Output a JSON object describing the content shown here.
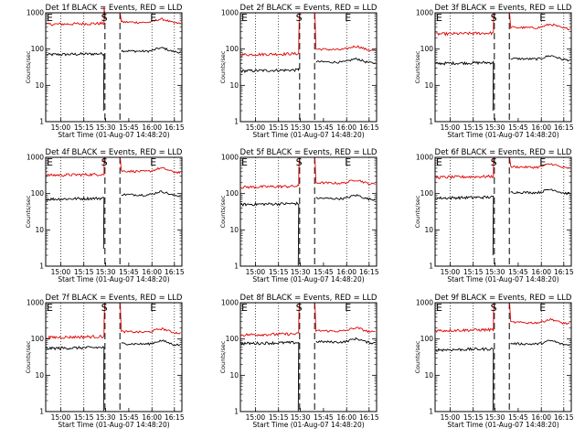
{
  "colors": {
    "background": "#ffffff",
    "events": "#000000",
    "lld": "#e00000",
    "frame": "#000000"
  },
  "chart_data": [
    {
      "type": "line",
      "title": "Det 1f BLACK = Events, RED = LLD",
      "xlabel": "Start Time (01-Aug-07 14:48:20)",
      "ylabel": "Counts/sec",
      "x_ticks": [
        "15:00",
        "15:15",
        "15:30",
        "15:45",
        "16:00",
        "16:15"
      ],
      "y_ticks": [
        "1",
        "10",
        "100",
        "1000"
      ],
      "y_scale": "log",
      "ylim": [
        1,
        1000
      ],
      "marker_labels": [
        "E",
        "S",
        "E"
      ],
      "series": [
        {
          "color": "#000000",
          "pre": 70,
          "post": 90,
          "drop_to": 2
        },
        {
          "color": "#e00000",
          "pre": 480,
          "post": 560
        }
      ]
    },
    {
      "type": "line",
      "title": "Det 2f BLACK = Events, RED = LLD",
      "xlabel": "Start Time (01-Aug-07 14:48:20)",
      "ylabel": "Counts/sec",
      "x_ticks": [
        "15:00",
        "15:15",
        "15:30",
        "15:45",
        "16:00",
        "16:15"
      ],
      "y_ticks": [
        "1",
        "10",
        "100",
        "1000"
      ],
      "y_scale": "log",
      "ylim": [
        1,
        1000
      ],
      "marker_labels": [
        "E",
        "S",
        "E"
      ],
      "series": [
        {
          "color": "#000000",
          "pre": 25,
          "post": 45,
          "drop_to": 30
        },
        {
          "color": "#e00000",
          "pre": 70,
          "post": 100
        }
      ]
    },
    {
      "type": "line",
      "title": "Det 3f BLACK = Events, RED = LLD",
      "xlabel": "Start Time (01-Aug-07 14:48:20)",
      "ylabel": "Counts/sec",
      "x_ticks": [
        "15:00",
        "15:15",
        "15:30",
        "15:45",
        "16:00",
        "16:15"
      ],
      "y_ticks": [
        "1",
        "10",
        "100",
        "1000"
      ],
      "y_scale": "log",
      "ylim": [
        1,
        1000
      ],
      "marker_labels": [
        "E",
        "S",
        "E"
      ],
      "series": [
        {
          "color": "#000000",
          "pre": 40,
          "post": 55,
          "drop_to": 2
        },
        {
          "color": "#e00000",
          "pre": 260,
          "post": 400
        }
      ]
    },
    {
      "type": "line",
      "title": "Det 4f BLACK = Events, RED = LLD",
      "xlabel": "Start Time (01-Aug-07 14:48:20)",
      "ylabel": "Counts/sec",
      "x_ticks": [
        "15:00",
        "15:15",
        "15:30",
        "15:45",
        "16:00",
        "16:15"
      ],
      "y_ticks": [
        "1",
        "10",
        "100",
        "1000"
      ],
      "y_scale": "log",
      "ylim": [
        1,
        1000
      ],
      "marker_labels": [
        "E",
        "S",
        "E"
      ],
      "series": [
        {
          "color": "#000000",
          "pre": 70,
          "post": 95,
          "drop_to": 3
        },
        {
          "color": "#e00000",
          "pre": 320,
          "post": 420
        }
      ]
    },
    {
      "type": "line",
      "title": "Det 5f BLACK = Events, RED = LLD",
      "xlabel": "Start Time (01-Aug-07 14:48:20)",
      "ylabel": "Counts/sec",
      "x_ticks": [
        "15:00",
        "15:15",
        "15:30",
        "15:45",
        "16:00",
        "16:15"
      ],
      "y_ticks": [
        "1",
        "10",
        "100",
        "1000"
      ],
      "y_scale": "log",
      "ylim": [
        1,
        1000
      ],
      "marker_labels": [
        "E",
        "S",
        "E"
      ],
      "series": [
        {
          "color": "#000000",
          "pre": 50,
          "post": 75,
          "drop_to": 1
        },
        {
          "color": "#e00000",
          "pre": 150,
          "post": 200
        }
      ]
    },
    {
      "type": "line",
      "title": "Det 6f BLACK = Events, RED = LLD",
      "xlabel": "Start Time (01-Aug-07 14:48:20)",
      "ylabel": "Counts/sec",
      "x_ticks": [
        "15:00",
        "15:15",
        "15:30",
        "15:45",
        "16:00",
        "16:15"
      ],
      "y_ticks": [
        "1",
        "10",
        "100",
        "1000"
      ],
      "y_scale": "log",
      "ylim": [
        1,
        1000
      ],
      "marker_labels": [
        "E",
        "S",
        "E"
      ],
      "series": [
        {
          "color": "#000000",
          "pre": 75,
          "post": 110,
          "drop_to": 2
        },
        {
          "color": "#e00000",
          "pre": 280,
          "post": 550
        }
      ]
    },
    {
      "type": "line",
      "title": "Det 7f BLACK = Events, RED = LLD",
      "xlabel": "Start Time (01-Aug-07 14:48:20)",
      "ylabel": "Counts/sec",
      "x_ticks": [
        "15:00",
        "15:15",
        "15:30",
        "15:45",
        "16:00",
        "16:15"
      ],
      "y_ticks": [
        "1",
        "10",
        "100",
        "1000"
      ],
      "y_scale": "log",
      "ylim": [
        1,
        1000
      ],
      "marker_labels": [
        "E",
        "S",
        "E"
      ],
      "series": [
        {
          "color": "#000000",
          "pre": 55,
          "post": 75,
          "drop_to": 1
        },
        {
          "color": "#e00000",
          "pre": 110,
          "post": 160
        }
      ]
    },
    {
      "type": "line",
      "title": "Det 8f BLACK = Events, RED = LLD",
      "xlabel": "Start Time (01-Aug-07 14:48:20)",
      "ylabel": "Counts/sec",
      "x_ticks": [
        "15:00",
        "15:15",
        "15:30",
        "15:45",
        "16:00",
        "16:15"
      ],
      "y_ticks": [
        "1",
        "10",
        "100",
        "1000"
      ],
      "y_scale": "log",
      "ylim": [
        1,
        1000
      ],
      "marker_labels": [
        "E",
        "S",
        "E"
      ],
      "series": [
        {
          "color": "#000000",
          "pre": 75,
          "post": 85,
          "drop_to": 1
        },
        {
          "color": "#e00000",
          "pre": 130,
          "post": 170
        }
      ]
    },
    {
      "type": "line",
      "title": "Det 9f BLACK = Events, RED = LLD",
      "xlabel": "Start Time (01-Aug-07 14:48:20)",
      "ylabel": "Counts/sec",
      "x_ticks": [
        "15:00",
        "15:15",
        "15:30",
        "15:45",
        "16:00",
        "16:15"
      ],
      "y_ticks": [
        "1",
        "10",
        "100",
        "1000"
      ],
      "y_scale": "log",
      "ylim": [
        1,
        1000
      ],
      "marker_labels": [
        "E",
        "S",
        "E"
      ],
      "series": [
        {
          "color": "#000000",
          "pre": 50,
          "post": 75,
          "drop_to": 1
        },
        {
          "color": "#e00000",
          "pre": 170,
          "post": 290
        }
      ]
    }
  ]
}
